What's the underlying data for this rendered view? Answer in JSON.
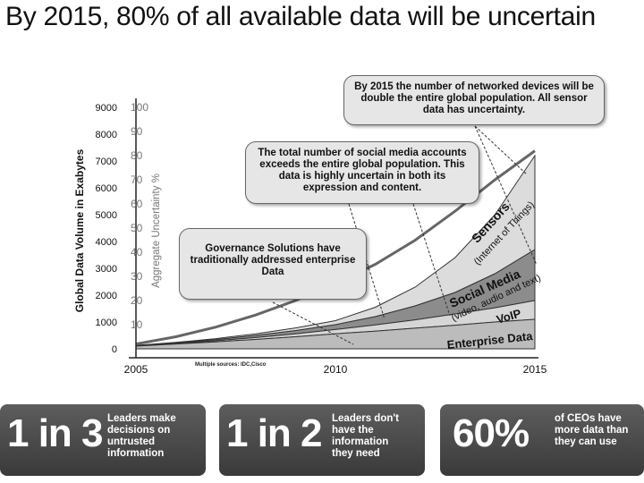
{
  "title": "By 2015, 80% of all available data will be uncertain",
  "chart_data": {
    "type": "area",
    "title": "",
    "xlabel": "",
    "ylabel": "Global Data Volume in Exabytes",
    "ylabel2": "Aggregate Uncertainty %",
    "xlim": [
      2005,
      2015
    ],
    "ylim": [
      0,
      9000
    ],
    "ylim2": [
      0,
      100
    ],
    "x_ticks": [
      "2005",
      "2010",
      "2015"
    ],
    "y_ticks": [
      "0",
      "1000",
      "2000",
      "3000",
      "4000",
      "5000",
      "6000",
      "7000",
      "8000",
      "9000"
    ],
    "y2_ticks": [
      "10",
      "20",
      "30",
      "40",
      "50",
      "60",
      "70",
      "80",
      "90",
      "100"
    ],
    "x": [
      2005,
      2006,
      2007,
      2008,
      2009,
      2010,
      2011,
      2012,
      2013,
      2014,
      2015
    ],
    "series": [
      {
        "name": "Enterprise Data",
        "values": [
          100,
          180,
          260,
          350,
          450,
          560,
          660,
          770,
          880,
          1000,
          1100
        ]
      },
      {
        "name": "VoIP",
        "values": [
          110,
          200,
          300,
          420,
          560,
          720,
          890,
          1080,
          1300,
          1530,
          1800
        ]
      },
      {
        "name": "Social Media",
        "sublabel": "(video, audio and text)",
        "values": [
          120,
          220,
          340,
          500,
          680,
          900,
          1200,
          1600,
          2100,
          2800,
          3700
        ]
      },
      {
        "name": "Sensors",
        "sublabel": "(Internet of Things)",
        "values": [
          130,
          240,
          380,
          560,
          780,
          1050,
          1550,
          2300,
          3400,
          5000,
          7200
        ]
      }
    ],
    "uncertainty_line": [
      2,
      5,
      9,
      14,
      20,
      27,
      35,
      45,
      57,
      70,
      82
    ],
    "grid": false,
    "legend": "none"
  },
  "callouts": {
    "devices": "By 2015 the number of networked devices will be double the entire global population. All sensor data has uncertainty.",
    "social": "The total number of social media accounts exceeds the entire global population. This data is highly uncertain in both its expression and content.",
    "governance": "Governance Solutions have traditionally addressed enterprise Data"
  },
  "sources": "Multiple sources: IDC,Cisco",
  "stats": [
    {
      "big": "1 in 3",
      "desc": "Leaders make\ndecisions on\nuntrusted\ninformation"
    },
    {
      "big": "1 in 2",
      "desc": "Leaders don't\nhave the\ninformation\nthey need"
    },
    {
      "big": "60%",
      "desc": "of CEOs have\nmore data than\nthey can use"
    }
  ],
  "colors": {
    "enterprise": "#bcbcbc",
    "voip": "#d6d6d6",
    "social": "#8c8c8c",
    "sensors": "#dcdcdc",
    "sensors_line": "#666666",
    "stat_box": "#4a4a4a"
  }
}
